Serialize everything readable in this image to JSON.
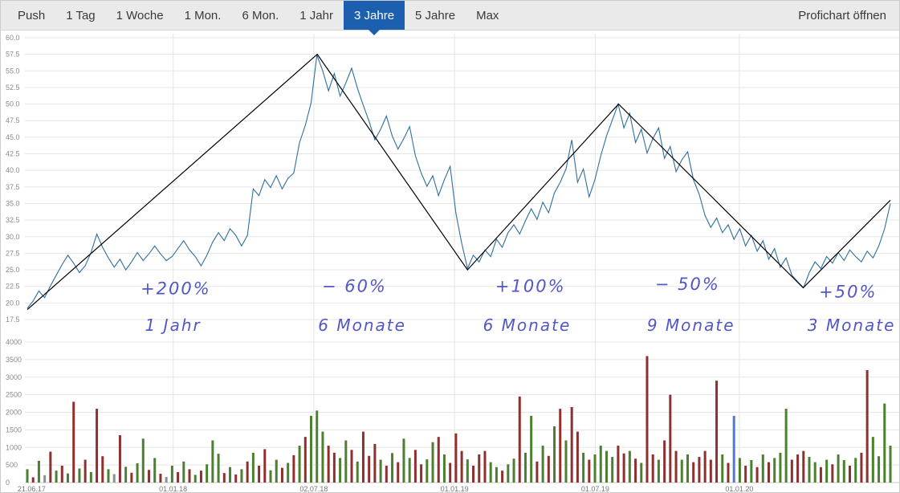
{
  "toolbar": {
    "selected_range": "3 Jahre",
    "tabs": [
      {
        "label": "Push",
        "active": false
      },
      {
        "label": "1 Tag",
        "active": false
      },
      {
        "label": "1 Woche",
        "active": false
      },
      {
        "label": "1 Mon.",
        "active": false
      },
      {
        "label": "6 Mon.",
        "active": false
      },
      {
        "label": "1 Jahr",
        "active": false
      },
      {
        "label": "3 Jahre",
        "active": true
      },
      {
        "label": "5 Jahre",
        "active": false
      },
      {
        "label": "Max",
        "active": false
      }
    ],
    "right_action": "Profichart öffnen"
  },
  "colors": {
    "active_tab": "#1c5fae",
    "price_line": "#2e6f9e",
    "trend_line": "#000000",
    "annotation": "#5257c8",
    "gridline": "#e5e5e5",
    "axis_text": "#8a8a8a",
    "volume_up": "#4a8030",
    "volume_down": "#8e3030"
  },
  "chart_data": {
    "type": "line",
    "title": "Aktienkurs 3 Jahre mit Volumen",
    "legend_position": "none",
    "grid": true,
    "x_axis": {
      "labels": [
        {
          "text": "21.06.17",
          "x": 0.005,
          "gridline": false
        },
        {
          "text": "01.01.18",
          "x": 0.169,
          "gridline": true
        },
        {
          "text": "02.07.18",
          "x": 0.332,
          "gridline": true
        },
        {
          "text": "01.01.19",
          "x": 0.495,
          "gridline": true
        },
        {
          "text": "01.07.19",
          "x": 0.658,
          "gridline": true
        },
        {
          "text": "01.01.20",
          "x": 0.825,
          "gridline": true
        }
      ]
    },
    "price_axis": {
      "min": 17.5,
      "max": 60.0,
      "step": 2.5,
      "ticks": [
        "60.0",
        "57.5",
        "55.0",
        "52.5",
        "50.0",
        "47.5",
        "45.0",
        "42.5",
        "40.0",
        "37.5",
        "35.0",
        "32.5",
        "30.0",
        "27.5",
        "25.0",
        "22.5",
        "20.0",
        "17.5"
      ]
    },
    "volume_axis": {
      "min": 0,
      "max": 4000,
      "step": 500,
      "ticks": [
        "4000",
        "3500",
        "3000",
        "2500",
        "2000",
        "1500",
        "1000",
        "500",
        "0"
      ]
    },
    "price_series": {
      "name": "Kurs",
      "color": "#2e6f9e",
      "values": [
        19.2,
        20.3,
        21.8,
        20.8,
        22.6,
        24.2,
        25.8,
        27.2,
        26.0,
        24.6,
        25.6,
        27.6,
        30.4,
        28.4,
        26.8,
        25.4,
        26.6,
        25.0,
        26.2,
        27.6,
        26.4,
        27.4,
        28.6,
        27.4,
        26.4,
        27.0,
        28.2,
        29.4,
        28.0,
        27.0,
        25.6,
        27.2,
        29.2,
        30.6,
        29.4,
        31.2,
        30.2,
        28.6,
        30.2,
        37.2,
        36.2,
        38.6,
        37.4,
        39.2,
        37.2,
        38.8,
        39.6,
        44.2,
        46.8,
        50.2,
        57.4,
        55.0,
        52.0,
        54.6,
        51.2,
        53.2,
        55.4,
        52.4,
        49.8,
        47.4,
        44.6,
        46.2,
        48.2,
        45.2,
        43.2,
        44.8,
        46.6,
        42.2,
        39.6,
        37.6,
        39.2,
        36.2,
        38.6,
        40.6,
        33.5,
        29.0,
        25.2,
        27.2,
        26.2,
        28.0,
        27.0,
        29.6,
        28.4,
        30.6,
        31.8,
        30.4,
        32.4,
        34.2,
        32.6,
        35.2,
        33.6,
        36.6,
        38.2,
        40.2,
        44.6,
        38.2,
        40.2,
        36.0,
        38.6,
        42.2,
        45.2,
        47.6,
        50.0,
        46.4,
        48.6,
        44.2,
        46.2,
        42.6,
        44.8,
        46.4,
        41.8,
        43.6,
        39.8,
        41.6,
        42.8,
        38.6,
        36.4,
        33.2,
        31.4,
        32.8,
        30.6,
        31.8,
        29.6,
        31.2,
        28.6,
        30.2,
        27.8,
        29.4,
        26.6,
        28.2,
        25.4,
        26.8,
        24.2,
        23.2,
        22.3,
        24.6,
        26.2,
        25.2,
        27.0,
        26.0,
        27.6,
        26.4,
        28.0,
        27.0,
        26.2,
        27.8,
        26.8,
        28.6,
        31.2,
        35.0
      ]
    },
    "trend_line": {
      "color": "#000000",
      "points": [
        {
          "x": 0.0,
          "price": 19.0
        },
        {
          "x": 0.336,
          "price": 57.5
        },
        {
          "x": 0.51,
          "price": 25.0
        },
        {
          "x": 0.685,
          "price": 50.0
        },
        {
          "x": 0.899,
          "price": 22.3
        },
        {
          "x": 1.0,
          "price": 35.5
        }
      ]
    },
    "annotations": {
      "color": "#5257c8",
      "percent": [
        {
          "text": "+200%",
          "x": 0.172,
          "price": 21.3
        },
        {
          "text": "− 60%",
          "x": 0.379,
          "price": 21.7
        },
        {
          "text": "+100%",
          "x": 0.583,
          "price": 21.7
        },
        {
          "text": "− 50%",
          "x": 0.765,
          "price": 22.0
        },
        {
          "text": "+50%",
          "x": 0.951,
          "price": 20.8
        }
      ],
      "duration": [
        {
          "text": "1 Jahr",
          "x": 0.169,
          "price": 15.8
        },
        {
          "text": "6 Monate",
          "x": 0.388,
          "price": 15.8
        },
        {
          "text": "6 Monate",
          "x": 0.579,
          "price": 15.8
        },
        {
          "text": "9 Monate",
          "x": 0.769,
          "price": 15.8
        },
        {
          "text": "3 Monate",
          "x": 0.955,
          "price": 15.8
        }
      ]
    },
    "volume_series": {
      "colors": {
        "r": "#8e3030",
        "g": "#4a8030",
        "n": "#909090",
        "b": "#4f7bd0"
      },
      "bars": [
        [
          380,
          "g"
        ],
        [
          150,
          "r"
        ],
        [
          620,
          "g"
        ],
        [
          210,
          "n"
        ],
        [
          880,
          "r"
        ],
        [
          340,
          "g"
        ],
        [
          480,
          "r"
        ],
        [
          260,
          "g"
        ],
        [
          2300,
          "r"
        ],
        [
          400,
          "g"
        ],
        [
          650,
          "r"
        ],
        [
          300,
          "g"
        ],
        [
          2100,
          "r"
        ],
        [
          750,
          "r"
        ],
        [
          380,
          "g"
        ],
        [
          240,
          "n"
        ],
        [
          1350,
          "r"
        ],
        [
          450,
          "g"
        ],
        [
          280,
          "r"
        ],
        [
          550,
          "g"
        ],
        [
          1250,
          "g"
        ],
        [
          360,
          "r"
        ],
        [
          700,
          "g"
        ],
        [
          250,
          "r"
        ],
        [
          160,
          "n"
        ],
        [
          480,
          "g"
        ],
        [
          300,
          "r"
        ],
        [
          600,
          "g"
        ],
        [
          380,
          "r"
        ],
        [
          220,
          "g"
        ],
        [
          340,
          "r"
        ],
        [
          520,
          "g"
        ],
        [
          1200,
          "g"
        ],
        [
          820,
          "g"
        ],
        [
          270,
          "r"
        ],
        [
          440,
          "g"
        ],
        [
          230,
          "r"
        ],
        [
          380,
          "g"
        ],
        [
          600,
          "r"
        ],
        [
          850,
          "g"
        ],
        [
          480,
          "r"
        ],
        [
          950,
          "r"
        ],
        [
          350,
          "g"
        ],
        [
          650,
          "g"
        ],
        [
          420,
          "r"
        ],
        [
          560,
          "g"
        ],
        [
          780,
          "r"
        ],
        [
          1050,
          "g"
        ],
        [
          1300,
          "r"
        ],
        [
          1900,
          "g"
        ],
        [
          2050,
          "g"
        ],
        [
          1450,
          "g"
        ],
        [
          1050,
          "r"
        ],
        [
          850,
          "r"
        ],
        [
          700,
          "g"
        ],
        [
          1200,
          "g"
        ],
        [
          930,
          "r"
        ],
        [
          600,
          "g"
        ],
        [
          1450,
          "r"
        ],
        [
          760,
          "r"
        ],
        [
          1100,
          "r"
        ],
        [
          650,
          "g"
        ],
        [
          480,
          "r"
        ],
        [
          840,
          "g"
        ],
        [
          580,
          "r"
        ],
        [
          1250,
          "g"
        ],
        [
          700,
          "g"
        ],
        [
          930,
          "r"
        ],
        [
          520,
          "r"
        ],
        [
          660,
          "g"
        ],
        [
          1150,
          "g"
        ],
        [
          1300,
          "r"
        ],
        [
          800,
          "g"
        ],
        [
          560,
          "r"
        ],
        [
          1400,
          "r"
        ],
        [
          900,
          "r"
        ],
        [
          660,
          "g"
        ],
        [
          480,
          "r"
        ],
        [
          800,
          "r"
        ],
        [
          900,
          "r"
        ],
        [
          580,
          "g"
        ],
        [
          440,
          "g"
        ],
        [
          340,
          "r"
        ],
        [
          520,
          "g"
        ],
        [
          680,
          "g"
        ],
        [
          2450,
          "r"
        ],
        [
          850,
          "g"
        ],
        [
          1900,
          "g"
        ],
        [
          600,
          "r"
        ],
        [
          1050,
          "g"
        ],
        [
          760,
          "r"
        ],
        [
          1600,
          "g"
        ],
        [
          2100,
          "r"
        ],
        [
          1200,
          "g"
        ],
        [
          2150,
          "r"
        ],
        [
          1450,
          "r"
        ],
        [
          850,
          "g"
        ],
        [
          650,
          "r"
        ],
        [
          800,
          "g"
        ],
        [
          1050,
          "g"
        ],
        [
          900,
          "g"
        ],
        [
          730,
          "g"
        ],
        [
          1050,
          "r"
        ],
        [
          830,
          "r"
        ],
        [
          900,
          "g"
        ],
        [
          680,
          "r"
        ],
        [
          560,
          "g"
        ],
        [
          3600,
          "r"
        ],
        [
          800,
          "r"
        ],
        [
          650,
          "g"
        ],
        [
          1200,
          "r"
        ],
        [
          2500,
          "r"
        ],
        [
          900,
          "r"
        ],
        [
          650,
          "g"
        ],
        [
          800,
          "g"
        ],
        [
          580,
          "r"
        ],
        [
          730,
          "r"
        ],
        [
          900,
          "r"
        ],
        [
          650,
          "r"
        ],
        [
          2900,
          "r"
        ],
        [
          800,
          "g"
        ],
        [
          560,
          "r"
        ],
        [
          1900,
          "b"
        ],
        [
          700,
          "g"
        ],
        [
          480,
          "r"
        ],
        [
          640,
          "g"
        ],
        [
          440,
          "r"
        ],
        [
          800,
          "g"
        ],
        [
          580,
          "r"
        ],
        [
          700,
          "g"
        ],
        [
          850,
          "g"
        ],
        [
          2100,
          "g"
        ],
        [
          650,
          "r"
        ],
        [
          800,
          "r"
        ],
        [
          900,
          "r"
        ],
        [
          730,
          "g"
        ],
        [
          580,
          "g"
        ],
        [
          440,
          "r"
        ],
        [
          650,
          "g"
        ],
        [
          520,
          "r"
        ],
        [
          800,
          "g"
        ],
        [
          640,
          "g"
        ],
        [
          480,
          "r"
        ],
        [
          700,
          "g"
        ],
        [
          850,
          "r"
        ],
        [
          3200,
          "r"
        ],
        [
          1300,
          "g"
        ],
        [
          750,
          "g"
        ],
        [
          2250,
          "g"
        ],
        [
          1050,
          "g"
        ]
      ]
    }
  }
}
